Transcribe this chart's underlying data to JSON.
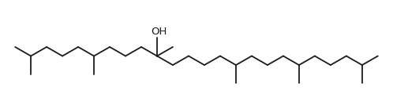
{
  "background_color": "#ffffff",
  "line_color": "#1a1a1a",
  "line_width": 1.3,
  "oh_label": "OH",
  "oh_fontsize": 9.5,
  "figsize": [
    4.98,
    1.43
  ],
  "dpi": 100
}
